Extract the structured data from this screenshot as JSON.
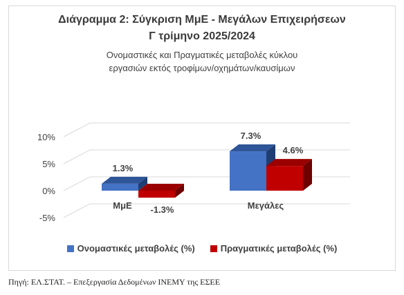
{
  "chart_data": {
    "type": "bar",
    "title": "Διάγραμμα 2: Σύγκριση ΜμΕ - Μεγάλων Επιχειρήσεων",
    "title_line2": "Γ τρίμηνο 2025/2024",
    "subtitle": "Ονομαστικές και Πραγματικές μεταβολές κύκλου εργασιών εκτός τροφίμων/οχημάτων/καυσίμων",
    "categories": [
      "ΜμΕ",
      "Μεγάλες"
    ],
    "series": [
      {
        "name": "Ονομαστικές μεταβολές (%)",
        "values": [
          1.3,
          7.3
        ],
        "labels": [
          "1.3%",
          "7.3%"
        ],
        "color": "#4472c4",
        "top_color": "#2e5597",
        "side_color": "#1f3d73"
      },
      {
        "name": "Πραγματικές μεταβολές (%)",
        "values": [
          -1.3,
          4.6
        ],
        "labels": [
          "-1.3%",
          "4.6%"
        ],
        "color": "#c00000",
        "top_color": "#9a0000",
        "side_color": "#6e0000"
      }
    ],
    "ylim": [
      -5,
      10
    ],
    "y_ticks": [
      10,
      5,
      0,
      -5
    ],
    "y_tick_labels": [
      "10%",
      "5%",
      "0%",
      "-5%"
    ],
    "grid": true,
    "legend_position": "bottom"
  },
  "footer": {
    "source": "Πηγή: ΕΛ.ΣΤΑΤ. – Επεξεργασία Δεδομένων ΙΝΕΜΥ της ΕΣΕΕ"
  }
}
